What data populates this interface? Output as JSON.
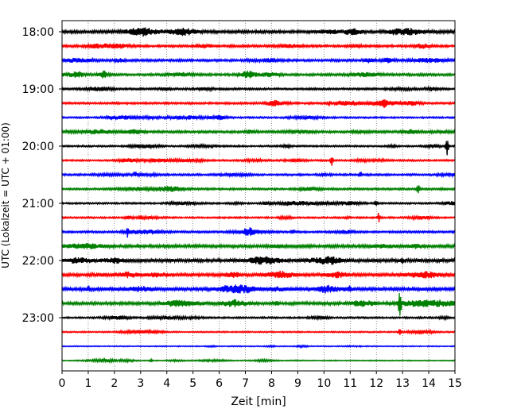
{
  "chart_data": {
    "type": "line",
    "xlabel": "Zeit  [min]",
    "ylabel": "UTC (Lokalzeit = UTC + 01:00)",
    "xlim": [
      0,
      15
    ],
    "xticks": [
      0,
      1,
      2,
      3,
      4,
      5,
      6,
      7,
      8,
      9,
      10,
      11,
      12,
      13,
      14,
      15
    ],
    "yticks": [
      "18:00",
      "19:00",
      "20:00",
      "21:00",
      "22:00",
      "23:00"
    ],
    "row_interval_min": 15,
    "start_time": "18:00",
    "grid": "vertical-dotted",
    "colors": [
      "#000000",
      "#ff0000",
      "#0000ff",
      "#008000"
    ],
    "rows": [
      {
        "t": "18:00",
        "amp": 0.9,
        "events": []
      },
      {
        "t": "18:15",
        "amp": 0.7,
        "events": []
      },
      {
        "t": "18:30",
        "amp": 0.7,
        "events": []
      },
      {
        "t": "18:45",
        "amp": 0.7,
        "events": [
          {
            "x": 1.6,
            "a": 1.5
          }
        ]
      },
      {
        "t": "19:00",
        "amp": 0.6,
        "events": []
      },
      {
        "t": "19:15",
        "amp": 0.6,
        "events": [
          {
            "x": 10.2,
            "a": 1.3
          },
          {
            "x": 12.3,
            "a": 1.3
          }
        ]
      },
      {
        "t": "19:30",
        "amp": 0.5,
        "events": []
      },
      {
        "t": "19:45",
        "amp": 0.7,
        "events": []
      },
      {
        "t": "20:00",
        "amp": 0.5,
        "events": [
          {
            "x": 14.7,
            "a": 5
          }
        ]
      },
      {
        "t": "20:15",
        "amp": 0.5,
        "events": [
          {
            "x": 10.3,
            "a": 3.5
          }
        ]
      },
      {
        "t": "20:30",
        "amp": 0.6,
        "events": [
          {
            "x": 2.8,
            "a": 1.5
          },
          {
            "x": 11.4,
            "a": 1.5
          }
        ]
      },
      {
        "t": "20:45",
        "amp": 0.6,
        "events": [
          {
            "x": 13.6,
            "a": 3
          }
        ]
      },
      {
        "t": "21:00",
        "amp": 0.5,
        "events": [
          {
            "x": 12.0,
            "a": 2.5
          }
        ]
      },
      {
        "t": "21:15",
        "amp": 0.5,
        "events": [
          {
            "x": 12.1,
            "a": 3
          },
          {
            "x": 3.0,
            "a": 1.3
          }
        ]
      },
      {
        "t": "21:30",
        "amp": 0.6,
        "events": [
          {
            "x": 2.5,
            "a": 2.5
          },
          {
            "x": 8.8,
            "a": 1.3
          }
        ]
      },
      {
        "t": "21:45",
        "amp": 0.9,
        "events": []
      },
      {
        "t": "22:00",
        "amp": 1.0,
        "events": [
          {
            "x": 13.0,
            "a": 1.3
          }
        ]
      },
      {
        "t": "22:15",
        "amp": 0.9,
        "events": []
      },
      {
        "t": "22:30",
        "amp": 1.0,
        "events": [
          {
            "x": 1.0,
            "a": 1.5
          },
          {
            "x": 11.0,
            "a": 1.3
          }
        ]
      },
      {
        "t": "22:45",
        "amp": 0.9,
        "events": [
          {
            "x": 12.9,
            "a": 9
          },
          {
            "x": 8.2,
            "a": 1.3
          }
        ]
      },
      {
        "t": "23:00",
        "amp": 0.5,
        "events": []
      },
      {
        "t": "23:15",
        "amp": 0.4,
        "events": [
          {
            "x": 12.9,
            "a": 2
          }
        ]
      },
      {
        "t": "23:30",
        "amp": 0.3,
        "events": []
      },
      {
        "t": "23:45",
        "amp": 0.3,
        "events": [
          {
            "x": 3.4,
            "a": 0.8
          }
        ]
      }
    ]
  }
}
